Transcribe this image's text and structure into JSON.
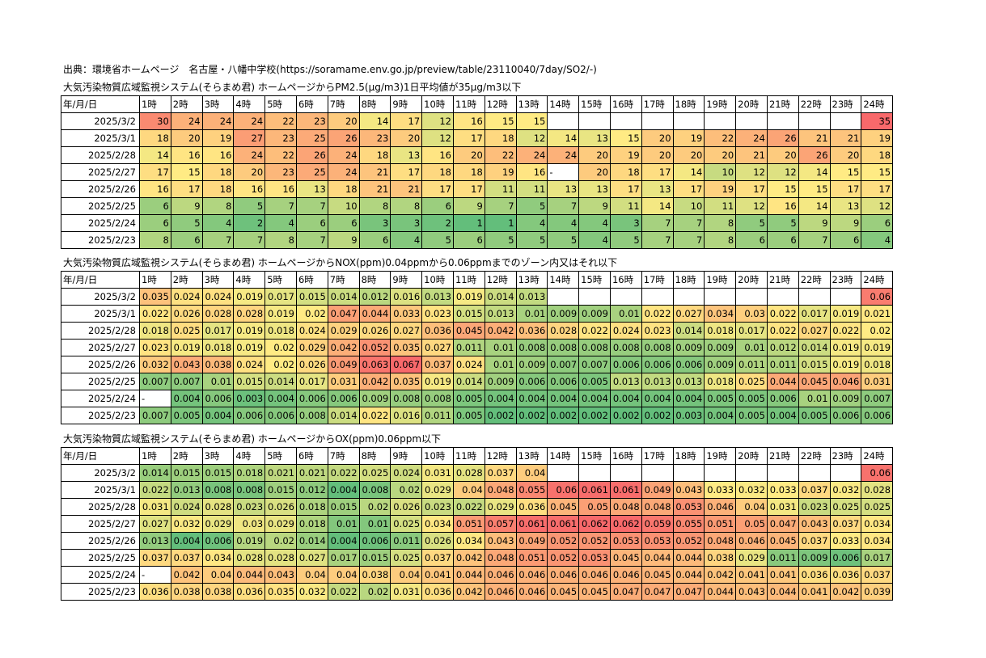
{
  "source": "出典：環境省ホームページ　名古屋・八幡中学校(https://soramame.env.go.jp/preview/table/23110040/7day/SO2/-)",
  "header_corner": "年/月/日",
  "hours": [
    "1時",
    "2時",
    "3時",
    "4時",
    "5時",
    "6時",
    "7時",
    "8時",
    "9時",
    "10時",
    "11時",
    "12時",
    "13時",
    "14時",
    "15時",
    "16時",
    "17時",
    "18時",
    "19時",
    "20時",
    "21時",
    "22時",
    "23時",
    "24時"
  ],
  "dates": [
    "2025/3/2",
    "2025/3/1",
    "2025/2/28",
    "2025/2/27",
    "2025/2/26",
    "2025/2/25",
    "2025/2/24",
    "2025/2/23"
  ],
  "color_scale": {
    "low": "#63be7b",
    "mid": "#ffeb84",
    "high": "#f8696b"
  },
  "tables": [
    {
      "id": "pm25",
      "title": "大気汚染物質広域監視システム(そらまめ君) ホームページからPM2.5(μg/m3)1日平均値が35μg/m3以下",
      "scale": {
        "min": 1,
        "mid": 15,
        "max": 35
      },
      "rows": [
        [
          "30",
          "24",
          "24",
          "24",
          "22",
          "23",
          "20",
          "14",
          "17",
          "12",
          "16",
          "15",
          "15",
          "",
          "",
          "",
          "",
          "",
          "",
          "",
          "",
          "",
          "",
          "35"
        ],
        [
          "18",
          "20",
          "19",
          "27",
          "23",
          "25",
          "26",
          "23",
          "20",
          "12",
          "17",
          "18",
          "12",
          "14",
          "13",
          "15",
          "20",
          "19",
          "22",
          "24",
          "26",
          "21",
          "21",
          "19"
        ],
        [
          "14",
          "16",
          "16",
          "24",
          "22",
          "26",
          "24",
          "18",
          "13",
          "16",
          "20",
          "22",
          "24",
          "24",
          "20",
          "19",
          "20",
          "20",
          "20",
          "21",
          "20",
          "26",
          "20",
          "18"
        ],
        [
          "17",
          "15",
          "18",
          "20",
          "23",
          "25",
          "24",
          "21",
          "17",
          "18",
          "18",
          "19",
          "16",
          "-",
          "20",
          "18",
          "17",
          "14",
          "10",
          "12",
          "12",
          "14",
          "15",
          "15"
        ],
        [
          "16",
          "17",
          "18",
          "16",
          "16",
          "13",
          "18",
          "21",
          "21",
          "17",
          "17",
          "11",
          "11",
          "13",
          "13",
          "17",
          "13",
          "17",
          "19",
          "17",
          "15",
          "15",
          "17",
          "17"
        ],
        [
          "6",
          "9",
          "8",
          "5",
          "7",
          "7",
          "10",
          "8",
          "8",
          "6",
          "9",
          "7",
          "5",
          "7",
          "9",
          "11",
          "14",
          "10",
          "11",
          "12",
          "16",
          "14",
          "13",
          "12"
        ],
        [
          "6",
          "5",
          "4",
          "2",
          "4",
          "6",
          "6",
          "3",
          "3",
          "2",
          "1",
          "1",
          "4",
          "4",
          "4",
          "3",
          "7",
          "7",
          "8",
          "5",
          "5",
          "9",
          "9",
          "6"
        ],
        [
          "8",
          "6",
          "7",
          "7",
          "8",
          "7",
          "9",
          "6",
          "4",
          "5",
          "6",
          "5",
          "5",
          "5",
          "4",
          "5",
          "7",
          "7",
          "8",
          "6",
          "6",
          "7",
          "6",
          "4"
        ]
      ]
    },
    {
      "id": "nox",
      "title": "大気汚染物質広域監視システム(そらまめ君) ホームページからNOX(ppm)0.04ppmから0.06ppmまでのゾーン内又はそれ以下",
      "scale": {
        "min": 0.002,
        "mid": 0.02,
        "max": 0.067
      },
      "rows": [
        [
          "0.035",
          "0.024",
          "0.024",
          "0.019",
          "0.017",
          "0.015",
          "0.014",
          "0.012",
          "0.016",
          "0.013",
          "0.019",
          "0.014",
          "0.013",
          "",
          "",
          "",
          "",
          "",
          "",
          "",
          "",
          "",
          "",
          "0.06"
        ],
        [
          "0.022",
          "0.026",
          "0.028",
          "0.028",
          "0.019",
          "0.02",
          "0.047",
          "0.044",
          "0.033",
          "0.023",
          "0.015",
          "0.013",
          "0.01",
          "0.009",
          "0.009",
          "0.01",
          "0.022",
          "0.027",
          "0.034",
          "0.03",
          "0.022",
          "0.017",
          "0.019",
          "0.021"
        ],
        [
          "0.018",
          "0.025",
          "0.017",
          "0.019",
          "0.018",
          "0.024",
          "0.029",
          "0.026",
          "0.027",
          "0.036",
          "0.045",
          "0.042",
          "0.036",
          "0.028",
          "0.022",
          "0.024",
          "0.023",
          "0.014",
          "0.018",
          "0.017",
          "0.022",
          "0.027",
          "0.022",
          "0.02"
        ],
        [
          "0.023",
          "0.019",
          "0.018",
          "0.019",
          "0.02",
          "0.029",
          "0.042",
          "0.052",
          "0.035",
          "0.027",
          "0.011",
          "0.01",
          "0.008",
          "0.008",
          "0.008",
          "0.008",
          "0.008",
          "0.009",
          "0.009",
          "0.01",
          "0.012",
          "0.014",
          "0.019",
          "0.019"
        ],
        [
          "0.032",
          "0.043",
          "0.038",
          "0.024",
          "0.02",
          "0.026",
          "0.049",
          "0.063",
          "0.067",
          "0.037",
          "0.024",
          "0.01",
          "0.009",
          "0.007",
          "0.007",
          "0.006",
          "0.006",
          "0.006",
          "0.009",
          "0.011",
          "0.011",
          "0.015",
          "0.019",
          "0.018"
        ],
        [
          "0.007",
          "0.007",
          "0.01",
          "0.015",
          "0.014",
          "0.017",
          "0.031",
          "0.042",
          "0.035",
          "0.019",
          "0.014",
          "0.009",
          "0.006",
          "0.006",
          "0.005",
          "0.013",
          "0.013",
          "0.013",
          "0.018",
          "0.025",
          "0.044",
          "0.045",
          "0.046",
          "0.031"
        ],
        [
          "-",
          "0.004",
          "0.006",
          "0.003",
          "0.004",
          "0.006",
          "0.006",
          "0.009",
          "0.008",
          "0.008",
          "0.005",
          "0.004",
          "0.004",
          "0.004",
          "0.004",
          "0.004",
          "0.004",
          "0.004",
          "0.005",
          "0.005",
          "0.006",
          "0.01",
          "0.009",
          "0.007"
        ],
        [
          "0.007",
          "0.005",
          "0.004",
          "0.006",
          "0.006",
          "0.008",
          "0.014",
          "0.022",
          "0.016",
          "0.011",
          "0.005",
          "0.002",
          "0.002",
          "0.002",
          "0.002",
          "0.002",
          "0.002",
          "0.003",
          "0.004",
          "0.005",
          "0.004",
          "0.005",
          "0.006",
          "0.006"
        ]
      ]
    },
    {
      "id": "ox",
      "title": "大気汚染物質広域監視システム(そらまめ君) ホームページからOX(ppm)0.06ppm以下",
      "scale": {
        "min": 0.004,
        "mid": 0.033,
        "max": 0.062
      },
      "rows": [
        [
          "0.014",
          "0.015",
          "0.015",
          "0.018",
          "0.021",
          "0.021",
          "0.022",
          "0.025",
          "0.024",
          "0.031",
          "0.028",
          "0.037",
          "0.04",
          "",
          "",
          "",
          "",
          "",
          "",
          "",
          "",
          "",
          "",
          "0.06"
        ],
        [
          "0.022",
          "0.013",
          "0.008",
          "0.008",
          "0.015",
          "0.012",
          "0.004",
          "0.008",
          "0.02",
          "0.029",
          "0.04",
          "0.048",
          "0.055",
          "0.06",
          "0.061",
          "0.061",
          "0.049",
          "0.043",
          "0.033",
          "0.032",
          "0.033",
          "0.037",
          "0.032",
          "0.028"
        ],
        [
          "0.031",
          "0.024",
          "0.028",
          "0.023",
          "0.026",
          "0.018",
          "0.015",
          "0.02",
          "0.026",
          "0.023",
          "0.022",
          "0.029",
          "0.036",
          "0.045",
          "0.05",
          "0.048",
          "0.048",
          "0.053",
          "0.046",
          "0.04",
          "0.031",
          "0.023",
          "0.025",
          "0.025"
        ],
        [
          "0.027",
          "0.032",
          "0.029",
          "0.03",
          "0.029",
          "0.018",
          "0.01",
          "0.01",
          "0.025",
          "0.034",
          "0.051",
          "0.057",
          "0.061",
          "0.061",
          "0.062",
          "0.062",
          "0.059",
          "0.055",
          "0.051",
          "0.05",
          "0.047",
          "0.043",
          "0.037",
          "0.034"
        ],
        [
          "0.013",
          "0.004",
          "0.006",
          "0.019",
          "0.02",
          "0.014",
          "0.004",
          "0.006",
          "0.011",
          "0.026",
          "0.034",
          "0.043",
          "0.049",
          "0.052",
          "0.052",
          "0.053",
          "0.053",
          "0.052",
          "0.048",
          "0.046",
          "0.045",
          "0.037",
          "0.033",
          "0.034"
        ],
        [
          "0.037",
          "0.037",
          "0.034",
          "0.028",
          "0.028",
          "0.027",
          "0.017",
          "0.015",
          "0.025",
          "0.037",
          "0.042",
          "0.048",
          "0.051",
          "0.052",
          "0.053",
          "0.045",
          "0.044",
          "0.044",
          "0.038",
          "0.029",
          "0.011",
          "0.009",
          "0.006",
          "0.017"
        ],
        [
          "-",
          "0.042",
          "0.04",
          "0.044",
          "0.043",
          "0.04",
          "0.04",
          "0.038",
          "0.04",
          "0.041",
          "0.044",
          "0.046",
          "0.046",
          "0.046",
          "0.046",
          "0.046",
          "0.045",
          "0.044",
          "0.042",
          "0.041",
          "0.041",
          "0.036",
          "0.036",
          "0.037"
        ],
        [
          "0.036",
          "0.038",
          "0.038",
          "0.036",
          "0.035",
          "0.032",
          "0.022",
          "0.02",
          "0.031",
          "0.036",
          "0.042",
          "0.046",
          "0.046",
          "0.045",
          "0.045",
          "0.047",
          "0.047",
          "0.047",
          "0.044",
          "0.043",
          "0.044",
          "0.041",
          "0.042",
          "0.039"
        ]
      ]
    }
  ]
}
